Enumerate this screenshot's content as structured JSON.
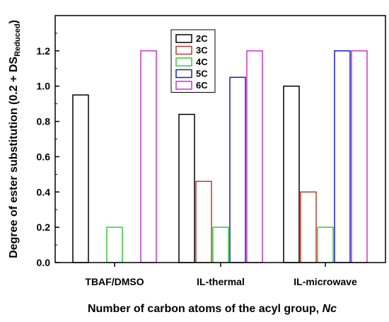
{
  "chart_data": {
    "type": "bar",
    "categories": [
      "TBAF/DMSO",
      "IL-thermal",
      "IL-microwave"
    ],
    "series": [
      {
        "name": "2C",
        "color": "#000000",
        "values": [
          0.95,
          0.84,
          1.0
        ]
      },
      {
        "name": "3C",
        "color": "#c0392b",
        "values": [
          null,
          0.46,
          0.4
        ]
      },
      {
        "name": "4C",
        "color": "#33cc33",
        "values": [
          0.2,
          0.2,
          0.2
        ]
      },
      {
        "name": "5C",
        "color": "#1a1acc",
        "values": [
          null,
          1.05,
          1.2
        ]
      },
      {
        "name": "6C",
        "color": "#cc33cc",
        "values": [
          1.2,
          1.2,
          1.2
        ]
      }
    ],
    "ylim": [
      0,
      1.4
    ],
    "yticks": [
      "0.0",
      "0.2",
      "0.4",
      "0.6",
      "0.8",
      "1.0",
      "1.2"
    ],
    "xlabel_main": "Number of carbon atoms of the acyl group, ",
    "xlabel_italic": "Nc",
    "ylabel_main": "Degree of ester substitution (0.2 + DS",
    "ylabel_sub": "Reduced",
    "ylabel_end": ")",
    "legend_position": "top-center"
  }
}
